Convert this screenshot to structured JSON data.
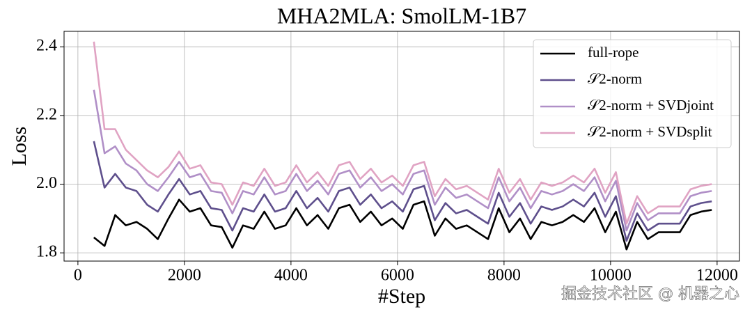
{
  "chart_data": {
    "type": "line",
    "title": "MHA2MLA: SmolLM-1B7",
    "xlabel": "#Step",
    "ylabel": "Loss",
    "x": [
      300,
      500,
      700,
      900,
      1100,
      1300,
      1500,
      1700,
      1900,
      2100,
      2300,
      2500,
      2700,
      2900,
      3100,
      3300,
      3500,
      3700,
      3900,
      4100,
      4300,
      4500,
      4700,
      4900,
      5100,
      5300,
      5500,
      5700,
      5900,
      6100,
      6300,
      6500,
      6700,
      6900,
      7100,
      7300,
      7500,
      7700,
      7900,
      8100,
      8300,
      8500,
      8700,
      8900,
      9100,
      9300,
      9500,
      9700,
      9900,
      10100,
      10300,
      10500,
      10700,
      10900,
      11100,
      11300,
      11500,
      11700,
      11900
    ],
    "series": [
      {
        "name": "full-rope",
        "color": "#000000",
        "values": [
          1.845,
          1.82,
          1.91,
          1.88,
          1.89,
          1.87,
          1.84,
          1.9,
          1.955,
          1.92,
          1.93,
          1.88,
          1.875,
          1.815,
          1.88,
          1.87,
          1.92,
          1.87,
          1.88,
          1.93,
          1.88,
          1.91,
          1.87,
          1.93,
          1.94,
          1.89,
          1.92,
          1.88,
          1.9,
          1.87,
          1.94,
          1.95,
          1.85,
          1.9,
          1.87,
          1.88,
          1.86,
          1.84,
          1.93,
          1.86,
          1.9,
          1.84,
          1.89,
          1.88,
          1.89,
          1.91,
          1.89,
          1.93,
          1.86,
          1.92,
          1.81,
          1.89,
          1.84,
          1.86,
          1.86,
          1.86,
          1.91,
          1.92,
          1.925
        ]
      },
      {
        "name": "𝒮2-norm",
        "color": "#5e4f8c",
        "values": [
          2.125,
          1.99,
          2.03,
          1.99,
          1.98,
          1.94,
          1.92,
          1.97,
          2.015,
          1.97,
          1.98,
          1.93,
          1.925,
          1.865,
          1.93,
          1.92,
          1.97,
          1.92,
          1.93,
          1.98,
          1.93,
          1.96,
          1.92,
          1.98,
          1.99,
          1.94,
          1.97,
          1.93,
          1.95,
          1.92,
          1.985,
          1.995,
          1.895,
          1.945,
          1.915,
          1.925,
          1.905,
          1.885,
          1.975,
          1.905,
          1.945,
          1.885,
          1.935,
          1.925,
          1.935,
          1.955,
          1.935,
          1.975,
          1.905,
          1.965,
          1.835,
          1.915,
          1.865,
          1.885,
          1.885,
          1.885,
          1.935,
          1.945,
          1.95
        ]
      },
      {
        "name": "𝒮2-norm + SVDjoint",
        "color": "#b08fc7",
        "values": [
          2.275,
          2.09,
          2.11,
          2.06,
          2.04,
          2.0,
          1.98,
          2.02,
          2.065,
          2.02,
          2.03,
          1.98,
          1.975,
          1.915,
          1.98,
          1.97,
          2.02,
          1.97,
          1.98,
          2.03,
          1.98,
          2.01,
          1.97,
          2.03,
          2.04,
          1.99,
          2.02,
          1.98,
          2.0,
          1.97,
          2.03,
          2.04,
          1.94,
          1.99,
          1.96,
          1.97,
          1.95,
          1.93,
          2.02,
          1.95,
          1.99,
          1.93,
          1.98,
          1.97,
          1.98,
          2.0,
          1.98,
          2.02,
          1.95,
          2.01,
          1.865,
          1.945,
          1.895,
          1.915,
          1.915,
          1.915,
          1.965,
          1.975,
          1.98
        ]
      },
      {
        "name": "𝒮2-norm + SVDsplit",
        "color": "#e0a3c3",
        "values": [
          2.415,
          2.16,
          2.16,
          2.1,
          2.07,
          2.04,
          2.02,
          2.05,
          2.095,
          2.045,
          2.055,
          2.005,
          2.0,
          1.94,
          2.005,
          1.995,
          2.045,
          1.995,
          2.005,
          2.055,
          2.005,
          2.035,
          1.995,
          2.055,
          2.065,
          2.015,
          2.045,
          2.005,
          2.025,
          1.995,
          2.055,
          2.065,
          1.965,
          2.015,
          1.985,
          1.995,
          1.975,
          1.955,
          2.045,
          1.975,
          2.015,
          1.955,
          2.005,
          1.995,
          2.005,
          2.025,
          2.005,
          2.045,
          1.975,
          2.035,
          1.885,
          1.965,
          1.915,
          1.935,
          1.935,
          1.935,
          1.985,
          1.995,
          2.0
        ]
      }
    ],
    "xlim": [
      -260,
      12420
    ],
    "ylim": [
      1.776,
      2.445
    ],
    "xticks": [
      0,
      2000,
      4000,
      6000,
      8000,
      10000,
      12000
    ],
    "yticks": [
      {
        "value": 1.8,
        "label": "1.8"
      },
      {
        "value": 2.0,
        "label": "2.0"
      },
      {
        "value": 2.2,
        "label": "2.2"
      },
      {
        "value": 2.4,
        "label": "2.4"
      }
    ],
    "grid": true,
    "legend": "upper right",
    "watermark": "掘金技术社区 @ 机器之心"
  }
}
